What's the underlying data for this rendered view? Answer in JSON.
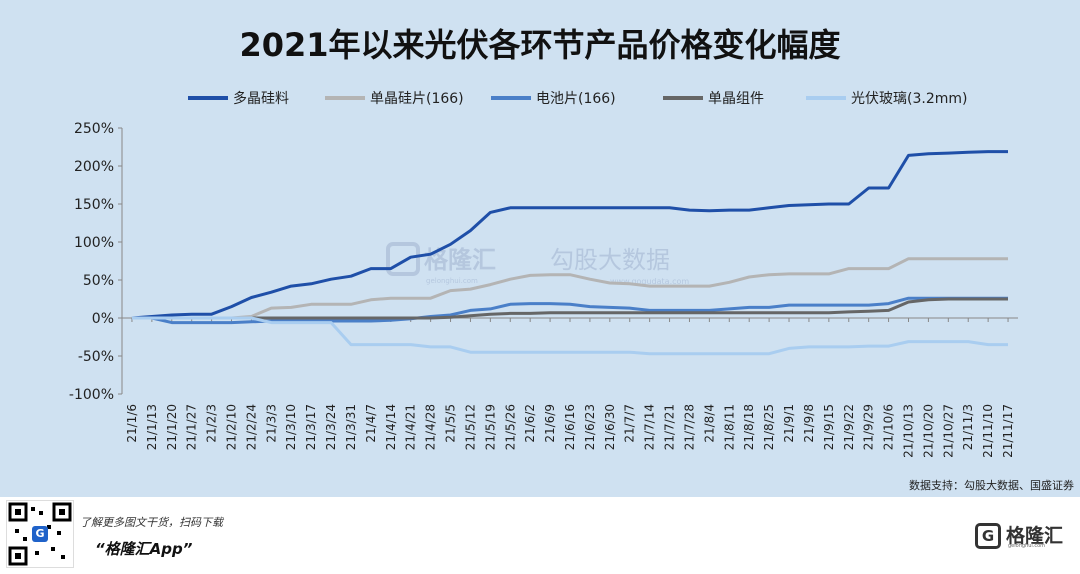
{
  "chart_data": {
    "type": "line",
    "title": "2021年以来光伏各环节产品价格变化幅度",
    "source": "数据支持：勾股大数据、国盛证券",
    "watermark": {
      "brand": "格隆汇",
      "domain": "gelonghui.com",
      "second": "勾股大数据",
      "second_domain": "www.gogudata.com"
    },
    "ylim": [
      -100,
      250
    ],
    "yticks": [
      "250%",
      "200%",
      "150%",
      "100%",
      "50%",
      "0%",
      "-50%",
      "-100%"
    ],
    "ytick_values": [
      250,
      200,
      150,
      100,
      50,
      0,
      -50,
      -100
    ],
    "x": [
      "21/1/6",
      "21/1/13",
      "21/1/20",
      "21/1/27",
      "21/2/3",
      "21/2/10",
      "21/2/24",
      "21/3/3",
      "21/3/10",
      "21/3/17",
      "21/3/24",
      "21/3/31",
      "21/4/7",
      "21/4/14",
      "21/4/21",
      "21/4/28",
      "21/5/5",
      "21/5/12",
      "21/5/19",
      "21/5/26",
      "21/6/2",
      "21/6/9",
      "21/6/16",
      "21/6/23",
      "21/6/30",
      "21/7/7",
      "21/7/14",
      "21/7/21",
      "21/7/28",
      "21/8/4",
      "21/8/11",
      "21/8/18",
      "21/8/25",
      "21/9/1",
      "21/9/8",
      "21/9/15",
      "21/9/22",
      "21/9/29",
      "21/10/6",
      "21/10/13",
      "21/10/20",
      "21/10/27",
      "21/11/3",
      "21/11/10",
      "21/11/17"
    ],
    "series": [
      {
        "name": "多晶硅料",
        "color": "#1f4fa8",
        "width": 3,
        "values": [
          0,
          2,
          4,
          5,
          5,
          15,
          27,
          34,
          42,
          45,
          51,
          55,
          65,
          65,
          80,
          84,
          97,
          115,
          139,
          145,
          145,
          145,
          145,
          145,
          145,
          145,
          145,
          145,
          142,
          141,
          142,
          142,
          145,
          148,
          149,
          150,
          150,
          171,
          171,
          214,
          216,
          217,
          218,
          219,
          219
        ]
      },
      {
        "name": "单晶硅片(166)",
        "color": "#b4b4b4",
        "width": 3,
        "values": [
          0,
          0,
          0,
          0,
          0,
          0,
          2,
          13,
          14,
          18,
          18,
          18,
          24,
          26,
          26,
          26,
          36,
          38,
          44,
          51,
          56,
          57,
          57,
          51,
          46,
          45,
          42,
          42,
          42,
          42,
          47,
          54,
          57,
          58,
          58,
          58,
          65,
          65,
          65,
          78,
          78,
          78,
          78,
          78,
          78
        ]
      },
      {
        "name": "电池片(166)",
        "color": "#4a7fc8",
        "width": 3,
        "values": [
          0,
          0,
          -6,
          -6,
          -6,
          -6,
          -5,
          -4,
          -4,
          -4,
          -4,
          -4,
          -4,
          -3,
          -1,
          2,
          4,
          10,
          12,
          18,
          19,
          19,
          18,
          15,
          14,
          13,
          10,
          10,
          10,
          10,
          12,
          14,
          14,
          17,
          17,
          17,
          17,
          17,
          19,
          26,
          26,
          26,
          26,
          26,
          26
        ]
      },
      {
        "name": "单晶组件",
        "color": "#666666",
        "width": 3,
        "values": [
          0,
          0,
          0,
          0,
          0,
          0,
          0,
          0,
          0,
          0,
          0,
          0,
          0,
          0,
          0,
          0,
          1,
          3,
          5,
          6,
          6,
          7,
          7,
          7,
          7,
          7,
          7,
          7,
          7,
          7,
          7,
          7,
          7,
          7,
          7,
          7,
          8,
          9,
          10,
          21,
          24,
          25,
          25,
          25,
          25
        ]
      },
      {
        "name": "光伏玻璃(3.2mm)",
        "color": "#a9cdf0",
        "width": 3,
        "values": [
          0,
          0,
          0,
          0,
          0,
          0,
          0,
          -6,
          -6,
          -6,
          -6,
          -35,
          -35,
          -35,
          -35,
          -38,
          -38,
          -45,
          -45,
          -45,
          -45,
          -45,
          -45,
          -45,
          -45,
          -45,
          -47,
          -47,
          -47,
          -47,
          -47,
          -47,
          -47,
          -40,
          -38,
          -38,
          -38,
          -37,
          -37,
          -31,
          -31,
          -31,
          -31,
          -35,
          -35
        ]
      }
    ]
  },
  "footer": {
    "promo": "了解更多图文干货，扫码下载",
    "app": "“格隆汇App”",
    "brand": "格隆汇",
    "domain": "gelonghui.com",
    "qr_letter": "G"
  }
}
